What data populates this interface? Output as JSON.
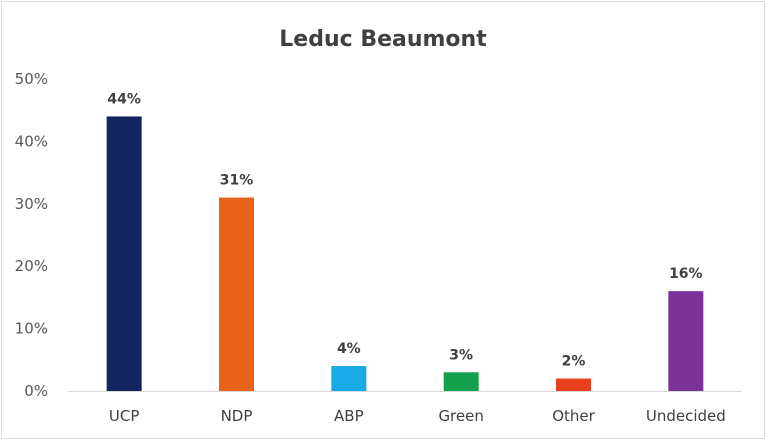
{
  "chart_data": {
    "type": "bar",
    "title": "Leduc Beaumont",
    "categories": [
      "UCP",
      "NDP",
      "ABP",
      "Green",
      "Other",
      "Undecided"
    ],
    "values": [
      44,
      31,
      4,
      3,
      2,
      16
    ],
    "data_labels": [
      "44%",
      "31%",
      "4%",
      "3%",
      "2%",
      "16%"
    ],
    "colors": [
      "#14245c",
      "#e8621a",
      "#19a9e6",
      "#13a04a",
      "#e8401c",
      "#7b3296"
    ],
    "ylim": [
      0,
      50
    ],
    "yticks": [
      0,
      10,
      20,
      30,
      40,
      50
    ],
    "ytick_labels": [
      "0%",
      "10%",
      "20%",
      "30%",
      "40%",
      "50%"
    ],
    "xlabel": "",
    "ylabel": "",
    "grid": false,
    "legend": "none"
  }
}
